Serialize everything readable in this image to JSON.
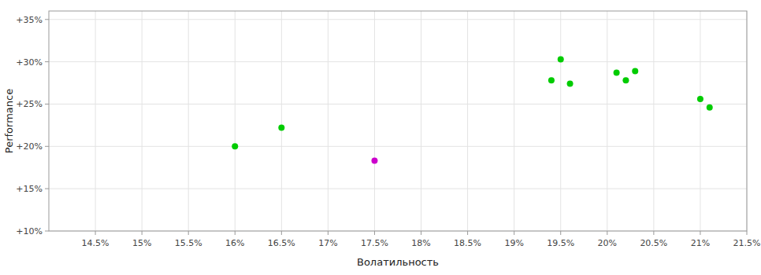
{
  "chart_data": {
    "type": "scatter",
    "xlabel": "Волатильность",
    "ylabel": "Performance",
    "xlim": [
      0.14,
      0.215
    ],
    "ylim": [
      0.1,
      0.36
    ],
    "xticks": [
      {
        "value": 0.145,
        "label": "14.5%"
      },
      {
        "value": 0.15,
        "label": "15%"
      },
      {
        "value": 0.155,
        "label": "15.5%"
      },
      {
        "value": 0.16,
        "label": "16%"
      },
      {
        "value": 0.165,
        "label": "16.5%"
      },
      {
        "value": 0.17,
        "label": "17%"
      },
      {
        "value": 0.175,
        "label": "17.5%"
      },
      {
        "value": 0.18,
        "label": "18%"
      },
      {
        "value": 0.185,
        "label": "18.5%"
      },
      {
        "value": 0.19,
        "label": "19%"
      },
      {
        "value": 0.195,
        "label": "19.5%"
      },
      {
        "value": 0.2,
        "label": "20%"
      },
      {
        "value": 0.205,
        "label": "20.5%"
      },
      {
        "value": 0.21,
        "label": "21%"
      },
      {
        "value": 0.215,
        "label": "21.5%"
      }
    ],
    "yticks": [
      {
        "value": 0.1,
        "label": "+10%"
      },
      {
        "value": 0.15,
        "label": "+15%"
      },
      {
        "value": 0.2,
        "label": "+20%"
      },
      {
        "value": 0.25,
        "label": "+25%"
      },
      {
        "value": 0.3,
        "label": "+30%"
      },
      {
        "value": 0.35,
        "label": "+35%"
      }
    ],
    "grid": true,
    "series": [
      {
        "color": "#00cc00",
        "x": [
          0.16,
          0.165,
          0.194,
          0.196,
          0.195,
          0.201,
          0.202,
          0.203,
          0.21,
          0.211
        ],
        "values": [
          0.2,
          0.222,
          0.278,
          0.274,
          0.303,
          0.287,
          0.278,
          0.289,
          0.256,
          0.246
        ]
      },
      {
        "color": "#cc00cc",
        "x": [
          0.175
        ],
        "values": [
          0.183
        ]
      }
    ]
  }
}
